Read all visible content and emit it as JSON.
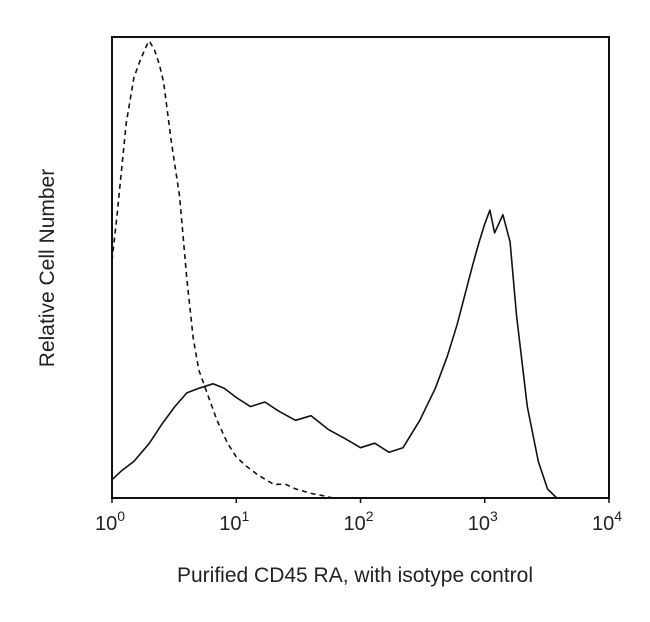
{
  "chart_data": {
    "type": "line",
    "title": "",
    "xlabel": "Purified CD45 RA, with isotype control",
    "ylabel": "Relative Cell Number",
    "xscale": "log",
    "xlim": [
      1,
      10000
    ],
    "ylim": [
      0,
      100
    ],
    "grid": false,
    "x_ticks": [
      {
        "base": "10",
        "exp": "0"
      },
      {
        "base": "10",
        "exp": "1"
      },
      {
        "base": "10",
        "exp": "2"
      },
      {
        "base": "10",
        "exp": "3"
      },
      {
        "base": "10",
        "exp": "4"
      }
    ],
    "series": [
      {
        "style": "solid",
        "color": "#111111",
        "x": [
          1.0,
          1.2,
          1.5,
          2.0,
          2.5,
          3.2,
          4.0,
          5.0,
          6.5,
          8.0,
          10,
          13,
          17,
          22,
          30,
          40,
          55,
          75,
          100,
          130,
          170,
          220,
          300,
          400,
          500,
          600,
          700,
          800,
          900,
          1000,
          1100,
          1200,
          1400,
          1600,
          1800,
          2200,
          2700,
          3200,
          3800
        ],
        "y": [
          4,
          6,
          8,
          12,
          16,
          20,
          23,
          24,
          25,
          24,
          22,
          20,
          21,
          19,
          17,
          18,
          15,
          13,
          11,
          12,
          10,
          11,
          17,
          24,
          31,
          38,
          45,
          51,
          56,
          60,
          63,
          58,
          62,
          56,
          40,
          20,
          8,
          2,
          0
        ]
      },
      {
        "style": "dashed",
        "color": "#111111",
        "x": [
          1.0,
          1.1,
          1.3,
          1.5,
          1.7,
          1.9,
          2.0,
          2.2,
          2.4,
          2.6,
          3.0,
          3.5,
          4.0,
          4.5,
          5.0,
          6.0,
          7.0,
          8.5,
          10,
          12,
          15,
          20,
          25,
          30,
          40,
          50,
          60
        ],
        "y": [
          52,
          62,
          82,
          92,
          96,
          99,
          100,
          98,
          95,
          91,
          78,
          66,
          48,
          35,
          28,
          22,
          17,
          12,
          9,
          7,
          5,
          3,
          3,
          2,
          1,
          0.5,
          0
        ]
      }
    ]
  }
}
